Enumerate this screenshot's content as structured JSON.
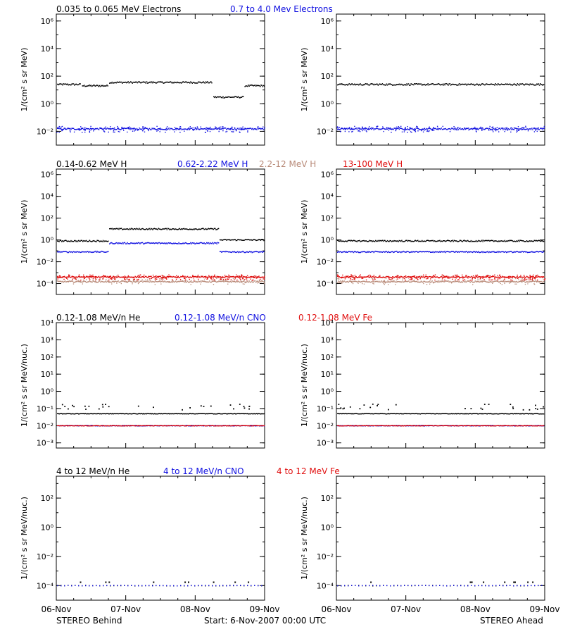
{
  "colors": {
    "black": "#000000",
    "blue": "#1010e0",
    "tan": "#b88a78",
    "red": "#e01010"
  },
  "panels": [
    {
      "titles": [
        {
          "text": "0.035 to 0.065 MeV Electrons",
          "color": "#000000"
        },
        {
          "text": "0.7 to 4.0 Mev Electrons",
          "color": "#1010e0"
        }
      ],
      "ylabel": "1/(cm² s sr MeV)",
      "ticks": [
        {
          "exp": -2,
          "label": "10⁻²"
        },
        {
          "exp": 0,
          "label": "10⁰"
        },
        {
          "exp": 2,
          "label": "10²"
        },
        {
          "exp": 4,
          "label": "10⁴"
        },
        {
          "exp": 6,
          "label": "10⁶"
        }
      ]
    },
    {
      "titles": [
        {
          "text": "0.14-0.62 MeV H",
          "color": "#000000"
        },
        {
          "text": "0.62-2.22 MeV H",
          "color": "#1010e0"
        },
        {
          "text": "2.2-12 MeV H",
          "color": "#b88a78"
        },
        {
          "text": "13-100 MeV H",
          "color": "#e01010"
        }
      ],
      "ylabel": "1/(cm² s sr MeV)",
      "ticks": [
        {
          "exp": -4,
          "label": "10⁻⁴"
        },
        {
          "exp": -2,
          "label": "10⁻²"
        },
        {
          "exp": 0,
          "label": "10⁰"
        },
        {
          "exp": 2,
          "label": "10²"
        },
        {
          "exp": 4,
          "label": "10⁴"
        },
        {
          "exp": 6,
          "label": "10⁶"
        }
      ]
    },
    {
      "titles": [
        {
          "text": "0.12-1.08 MeV/n He",
          "color": "#000000"
        },
        {
          "text": "0.12-1.08 MeV/n CNO",
          "color": "#1010e0"
        },
        {
          "text": "0.12-1.08 MeV Fe",
          "color": "#e01010"
        }
      ],
      "ylabel": "1/(cm² s sr MeV/nuc.)",
      "ticks": [
        {
          "exp": -3,
          "label": "10⁻³"
        },
        {
          "exp": -2,
          "label": "10⁻²"
        },
        {
          "exp": -1,
          "label": "10⁻¹"
        },
        {
          "exp": 0,
          "label": "10⁰"
        },
        {
          "exp": 1,
          "label": "10¹"
        },
        {
          "exp": 2,
          "label": "10²"
        },
        {
          "exp": 3,
          "label": "10³"
        },
        {
          "exp": 4,
          "label": "10⁴"
        }
      ]
    },
    {
      "titles": [
        {
          "text": "4 to 12 MeV/n He",
          "color": "#000000"
        },
        {
          "text": "4 to 12 MeV/n CNO",
          "color": "#1010e0"
        },
        {
          "text": "4 to 12 MeV Fe",
          "color": "#e01010"
        }
      ],
      "ylabel": "1/(cm² s sr MeV/nuc.)",
      "ticks": [
        {
          "exp": -4,
          "label": "10⁻⁴"
        },
        {
          "exp": -2,
          "label": "10⁻²"
        },
        {
          "exp": 0,
          "label": "10⁰"
        },
        {
          "exp": 2,
          "label": "10²"
        }
      ]
    }
  ],
  "xticks": [
    "06-Nov",
    "07-Nov",
    "08-Nov",
    "09-Nov"
  ],
  "footer": {
    "left": "STEREO Behind",
    "center": "Start:  6-Nov-2007 00:00 UTC",
    "right": "STEREO Ahead"
  },
  "chart_data": [
    {
      "type": "scatter",
      "spacecraft": "STEREO Behind",
      "panel": 0,
      "ylog": true,
      "ylim": [
        -3,
        6.5
      ],
      "series": [
        {
          "name": "0.035 to 0.065 MeV Electrons",
          "color": "#000000",
          "segments": [
            [
              0,
              0.12,
              25
            ],
            [
              0.12,
              0.25,
              20
            ],
            [
              0.25,
              0.75,
              35
            ],
            [
              0.75,
              0.9,
              3
            ],
            [
              0.9,
              1.0,
              20
            ]
          ]
        },
        {
          "name": "0.7 to 4.0 Mev Electrons",
          "color": "#1010e0",
          "segments": [
            [
              0,
              1.0,
              0.015
            ]
          ]
        }
      ]
    },
    {
      "type": "scatter",
      "spacecraft": "STEREO Ahead",
      "panel": 0,
      "ylog": true,
      "ylim": [
        -3,
        6.5
      ],
      "series": [
        {
          "name": "0.035 to 0.065 MeV Electrons",
          "color": "#000000",
          "segments": [
            [
              0,
              1.0,
              25
            ]
          ]
        },
        {
          "name": "0.7 to 4.0 Mev Electrons",
          "color": "#1010e0",
          "segments": [
            [
              0,
              1.0,
              0.015
            ]
          ]
        }
      ]
    },
    {
      "type": "scatter",
      "spacecraft": "STEREO Behind",
      "panel": 1,
      "ylog": true,
      "ylim": [
        -5,
        6.5
      ],
      "series": [
        {
          "name": "0.14-0.62 MeV H",
          "color": "#000000",
          "segments": [
            [
              0,
              0.25,
              0.8
            ],
            [
              0.25,
              0.78,
              10
            ],
            [
              0.78,
              1.0,
              1.0
            ]
          ]
        },
        {
          "name": "0.62-2.22 MeV H",
          "color": "#1010e0",
          "segments": [
            [
              0,
              0.25,
              0.08
            ],
            [
              0.25,
              0.78,
              0.5
            ],
            [
              0.78,
              1.0,
              0.08
            ]
          ]
        },
        {
          "name": "2.2-12 MeV H",
          "color": "#b88a78",
          "segments": [
            [
              0,
              1.0,
              0.00015
            ]
          ]
        },
        {
          "name": "13-100 MeV H",
          "color": "#e01010",
          "segments": [
            [
              0,
              1.0,
              0.0004
            ]
          ]
        }
      ]
    },
    {
      "type": "scatter",
      "spacecraft": "STEREO Ahead",
      "panel": 1,
      "ylog": true,
      "ylim": [
        -5,
        6.5
      ],
      "series": [
        {
          "name": "0.14-0.62 MeV H",
          "color": "#000000",
          "segments": [
            [
              0,
              1.0,
              0.8
            ]
          ]
        },
        {
          "name": "0.62-2.22 MeV H",
          "color": "#1010e0",
          "segments": [
            [
              0,
              1.0,
              0.08
            ]
          ]
        },
        {
          "name": "2.2-12 MeV H",
          "color": "#b88a78",
          "segments": [
            [
              0,
              1.0,
              0.00015
            ]
          ]
        },
        {
          "name": "13-100 MeV H",
          "color": "#e01010",
          "segments": [
            [
              0,
              1.0,
              0.0004
            ]
          ]
        }
      ]
    },
    {
      "type": "scatter",
      "spacecraft": "STEREO Behind",
      "panel": 2,
      "ylog": true,
      "ylim": [
        -3.3,
        4
      ],
      "series": [
        {
          "name": "0.12-1.08 MeV/n He",
          "color": "#000000",
          "segments": [
            [
              0,
              1.0,
              0.05
            ]
          ]
        },
        {
          "name": "0.12-1.08 MeV/n CNO",
          "color": "#1010e0",
          "segments": [
            [
              0,
              1.0,
              0.01
            ]
          ]
        },
        {
          "name": "0.12-1.08 MeV Fe",
          "color": "#e01010",
          "segments": [
            [
              0,
              1.0,
              0.01
            ]
          ]
        }
      ]
    },
    {
      "type": "scatter",
      "spacecraft": "STEREO Ahead",
      "panel": 2,
      "ylog": true,
      "ylim": [
        -3.3,
        4
      ],
      "series": [
        {
          "name": "0.12-1.08 MeV/n He",
          "color": "#000000",
          "segments": [
            [
              0,
              1.0,
              0.05
            ]
          ]
        },
        {
          "name": "0.12-1.08 MeV/n CNO",
          "color": "#1010e0",
          "segments": [
            [
              0,
              1.0,
              0.01
            ]
          ]
        },
        {
          "name": "0.12-1.08 MeV Fe",
          "color": "#e01010",
          "segments": [
            [
              0,
              1.0,
              0.01
            ]
          ]
        }
      ]
    },
    {
      "type": "scatter",
      "spacecraft": "STEREO Behind",
      "panel": 3,
      "ylog": true,
      "ylim": [
        -5,
        3.5
      ],
      "series": [
        {
          "name": "4 to 12 MeV/n He",
          "color": "#000000",
          "segments": [
            [
              0,
              1.0,
              0.0001
            ]
          ]
        },
        {
          "name": "4 to 12 MeV/n CNO",
          "color": "#1010e0",
          "segments": [
            [
              0,
              1.0,
              0.0001
            ]
          ]
        },
        {
          "name": "4 to 12 MeV Fe",
          "color": "#e01010",
          "segments": []
        }
      ]
    },
    {
      "type": "scatter",
      "spacecraft": "STEREO Ahead",
      "panel": 3,
      "ylog": true,
      "ylim": [
        -5,
        3.5
      ],
      "series": [
        {
          "name": "4 to 12 MeV/n He",
          "color": "#000000",
          "segments": [
            [
              0,
              1.0,
              0.0001
            ]
          ]
        },
        {
          "name": "4 to 12 MeV/n CNO",
          "color": "#1010e0",
          "segments": [
            [
              0,
              1.0,
              0.0001
            ]
          ]
        },
        {
          "name": "4 to 12 MeV Fe",
          "color": "#e01010",
          "segments": []
        }
      ]
    }
  ]
}
